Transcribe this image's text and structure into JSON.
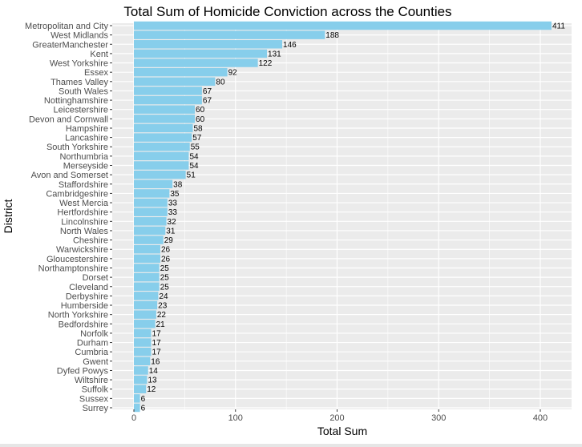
{
  "chart_data": {
    "type": "bar",
    "orientation": "horizontal",
    "title": "Total Sum of Homicide Conviction across the Counties",
    "xlabel": "Total Sum",
    "ylabel": "District",
    "xlim": [
      0,
      420
    ],
    "xticks": [
      0,
      100,
      200,
      300,
      400
    ],
    "grid": true,
    "bar_color": "#87CEEB",
    "panel_color": "#EBEBEB",
    "categories": [
      "Metropolitan and City",
      "West Midlands",
      "GreaterManchester",
      "Kent",
      "West Yorkshire",
      "Essex",
      "Thames Valley",
      "South Wales",
      "Nottinghamshire",
      "Leicestershire",
      "Devon and Cornwall",
      "Hampshire",
      "Lancashire",
      "South Yorkshire",
      "Northumbria",
      "Merseyside",
      "Avon and Somerset",
      "Staffordshire",
      "Cambridgeshire",
      "West Mercia",
      "Hertfordshire",
      "Lincolnshire",
      "North Wales",
      "Cheshire",
      "Warwickshire",
      "Gloucestershire",
      "Northamptonshire",
      "Dorset",
      "Cleveland",
      "Derbyshire",
      "Humberside",
      "North Yorkshire",
      "Bedfordshire",
      "Norfolk",
      "Durham",
      "Cumbria",
      "Gwent",
      "Dyfed Powys",
      "Wiltshire",
      "Suffolk",
      "Sussex",
      "Surrey"
    ],
    "values": [
      411,
      188,
      146,
      131,
      122,
      92,
      80,
      67,
      67,
      60,
      60,
      58,
      57,
      55,
      54,
      54,
      51,
      38,
      35,
      33,
      33,
      32,
      31,
      29,
      26,
      26,
      25,
      25,
      25,
      24,
      23,
      22,
      21,
      17,
      17,
      17,
      16,
      14,
      13,
      12,
      6,
      6
    ]
  }
}
